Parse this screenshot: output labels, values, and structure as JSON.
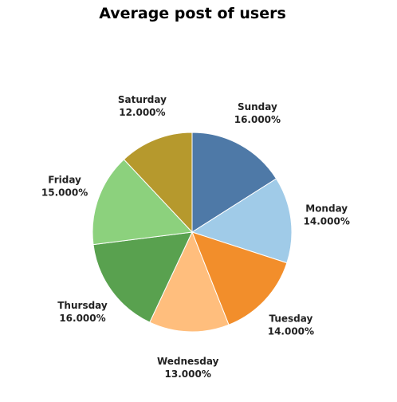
{
  "chart_data": {
    "type": "pie",
    "title": "Average post of users",
    "start_angle_deg": 0,
    "direction": "clockwise",
    "slices": [
      {
        "label": "Sunday",
        "value": 16,
        "value_text": "16.000%",
        "color": "#4e79a7"
      },
      {
        "label": "Monday",
        "value": 14,
        "value_text": "14.000%",
        "color": "#a0cbe8"
      },
      {
        "label": "Tuesday",
        "value": 14,
        "value_text": "14.000%",
        "color": "#f28e2b"
      },
      {
        "label": "Wednesday",
        "value": 13,
        "value_text": "13.000%",
        "color": "#ffbe7d"
      },
      {
        "label": "Thursday",
        "value": 16,
        "value_text": "16.000%",
        "color": "#59a14f"
      },
      {
        "label": "Friday",
        "value": 15,
        "value_text": "15.000%",
        "color": "#8cd17d"
      },
      {
        "label": "Saturday",
        "value": 12,
        "value_text": "12.000%",
        "color": "#b6992d"
      }
    ]
  }
}
